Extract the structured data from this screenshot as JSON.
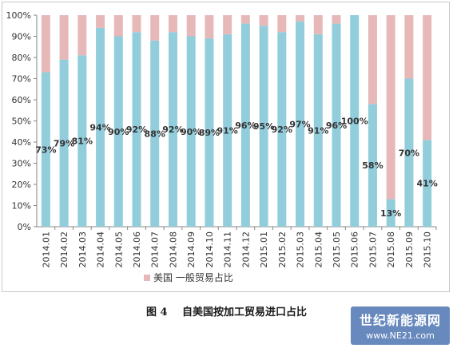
{
  "chart_data": {
    "type": "bar",
    "stacked": true,
    "categories": [
      "2014.01",
      "2014.02",
      "2014.03",
      "2014.04",
      "2014.05",
      "2014.06",
      "2014.07",
      "2014.08",
      "2014.09",
      "2014.10",
      "2014.11",
      "2014.12",
      "2015.01",
      "2015.02",
      "2015.03",
      "2015.04",
      "2015.05",
      "2015.06",
      "2015.07",
      "2015.08",
      "2015.09",
      "2015.10"
    ],
    "series": [
      {
        "color": "#92cddc",
        "values": [
          73,
          79,
          81,
          94,
          90,
          92,
          88,
          92,
          90,
          89,
          91,
          96,
          95,
          92,
          97,
          91,
          96,
          100,
          58,
          13,
          70,
          41
        ],
        "labels": [
          "73%",
          "79%",
          "81%",
          "94%",
          "90%",
          "92%",
          "88%",
          "92%",
          "90%",
          "89%",
          "91%",
          "96%",
          "95%",
          "92%",
          "97%",
          "91%",
          "96%",
          "100%",
          "58%",
          "13%",
          "70%",
          "41%"
        ]
      },
      {
        "name": "美国 一般贸易占比",
        "color": "#e6b9b8",
        "values": [
          27,
          21,
          19,
          6,
          10,
          8,
          12,
          8,
          10,
          11,
          9,
          4,
          5,
          8,
          3,
          9,
          4,
          0,
          42,
          87,
          30,
          59
        ]
      }
    ],
    "ylim": [
      0,
      100
    ],
    "yticks": [
      "0%",
      "10%",
      "20%",
      "30%",
      "40%",
      "50%",
      "60%",
      "70%",
      "80%",
      "90%",
      "100%"
    ],
    "grid": false,
    "legend": "bottom-left"
  },
  "caption": {
    "figure": "图 4",
    "title": "自美国按加工贸易进口占比"
  },
  "watermark": {
    "line1": "世纪新能源网",
    "line2": "www.NE21.com"
  }
}
